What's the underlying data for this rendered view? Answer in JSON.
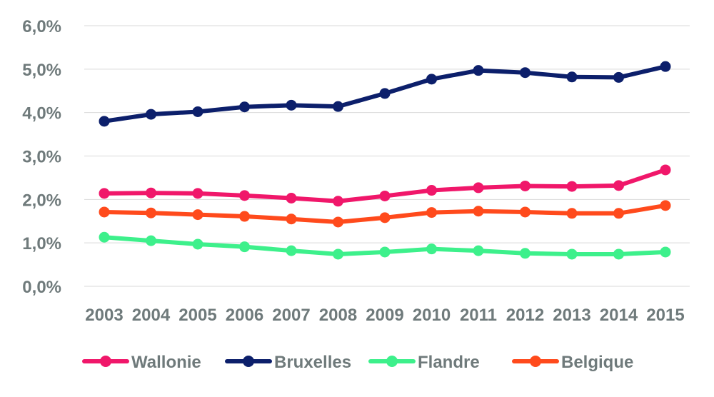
{
  "chart_data": {
    "type": "line",
    "title": "",
    "xlabel": "",
    "ylabel": "",
    "categories": [
      "2003",
      "2004",
      "2005",
      "2006",
      "2007",
      "2008",
      "2009",
      "2010",
      "2011",
      "2012",
      "2013",
      "2014",
      "2015"
    ],
    "ylim": [
      0,
      6
    ],
    "y_ticks": [
      0,
      1,
      2,
      3,
      4,
      5,
      6
    ],
    "y_tick_labels": [
      "0,0%",
      "1,0%",
      "2,0%",
      "3,0%",
      "4,0%",
      "5,0%",
      "6,0%"
    ],
    "grid": true,
    "legend_position": "bottom",
    "series": [
      {
        "name": "Wallonie",
        "color": "#f0176a",
        "values": [
          2.14,
          2.15,
          2.14,
          2.09,
          2.03,
          1.96,
          2.08,
          2.21,
          2.27,
          2.31,
          2.3,
          2.32,
          2.68
        ]
      },
      {
        "name": "Bruxelles",
        "color": "#0c1f6b",
        "values": [
          3.8,
          3.96,
          4.02,
          4.13,
          4.17,
          4.14,
          4.44,
          4.77,
          4.97,
          4.92,
          4.82,
          4.81,
          5.06
        ]
      },
      {
        "name": "Flandre",
        "color": "#3df08b",
        "values": [
          1.13,
          1.05,
          0.97,
          0.91,
          0.82,
          0.74,
          0.79,
          0.86,
          0.82,
          0.76,
          0.74,
          0.74,
          0.79
        ]
      },
      {
        "name": "Belgique",
        "color": "#ff4a1c",
        "values": [
          1.71,
          1.69,
          1.65,
          1.61,
          1.55,
          1.48,
          1.58,
          1.7,
          1.73,
          1.71,
          1.68,
          1.68,
          1.86
        ]
      }
    ]
  }
}
